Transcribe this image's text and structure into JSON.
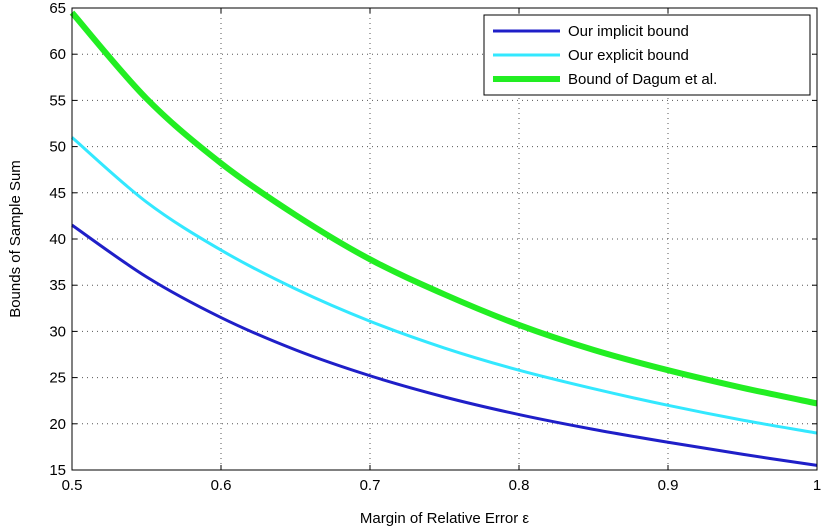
{
  "chart_data": {
    "type": "line",
    "xlabel": "Margin of Relative Error ε",
    "ylabel": "Bounds of Sample Sum",
    "xlim": [
      0.5,
      1.0
    ],
    "ylim": [
      15,
      65
    ],
    "xticks": [
      0.5,
      0.6,
      0.7,
      0.8,
      0.9,
      1.0
    ],
    "xtick_labels": [
      "0.5",
      "0.6",
      "0.7",
      "0.8",
      "0.9",
      "1"
    ],
    "yticks": [
      15,
      20,
      25,
      30,
      35,
      40,
      45,
      50,
      55,
      60,
      65
    ],
    "ytick_labels": [
      "15",
      "20",
      "25",
      "30",
      "35",
      "40",
      "45",
      "50",
      "55",
      "60",
      "65"
    ],
    "grid": true,
    "legend_position": "top-right",
    "x": [
      0.5,
      0.55,
      0.6,
      0.65,
      0.7,
      0.75,
      0.8,
      0.85,
      0.9,
      0.95,
      1.0
    ],
    "series": [
      {
        "name": "Our implicit bound",
        "color": "#1f1fc8",
        "values": [
          41.5,
          35.9,
          31.5,
          28.0,
          25.2,
          22.9,
          21.0,
          19.4,
          18.0,
          16.7,
          15.5
        ]
      },
      {
        "name": "Our explicit bound",
        "color": "#33e8ff",
        "values": [
          51.0,
          44.0,
          38.8,
          34.6,
          31.1,
          28.2,
          25.8,
          23.8,
          22.0,
          20.4,
          19.0
        ]
      },
      {
        "name": "Bound of Dagum et al.",
        "color": "#22ee22",
        "values": [
          64.5,
          55.2,
          48.2,
          42.6,
          37.8,
          34.0,
          30.7,
          28.0,
          25.8,
          23.9,
          22.2
        ]
      }
    ]
  }
}
